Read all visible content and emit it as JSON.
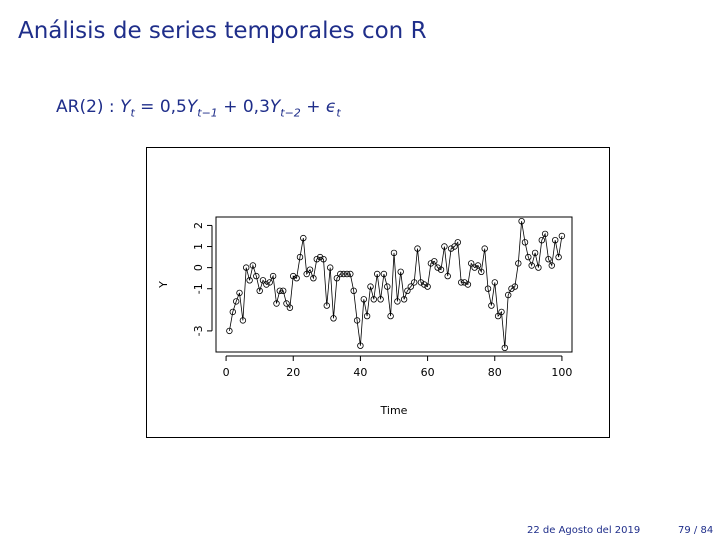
{
  "slide": {
    "title": "Análisis de series temporales con R",
    "equation": {
      "label": "AR(2) : ",
      "lhs": "Y",
      "lhs_sub": "t",
      "eq": " = 0,5",
      "term1": "Y",
      "term1_sub": "t−1",
      "plus1": " + 0,3",
      "term2": "Y",
      "term2_sub": "t−2",
      "plus2": " + ",
      "eps": "ϵ",
      "eps_sub": "t"
    },
    "footer": {
      "date": "22 de Agosto del 2019",
      "page": "79 / 84"
    }
  },
  "chart_data": {
    "type": "line",
    "xlabel": "Time",
    "ylabel": "Y",
    "xlim": [
      0,
      100
    ],
    "ylim": [
      -3,
      2
    ],
    "xticks": [
      0,
      20,
      40,
      60,
      80,
      100
    ],
    "yticks": [
      -3,
      -1,
      0,
      1,
      2
    ],
    "x": [
      1,
      2,
      3,
      4,
      5,
      6,
      7,
      8,
      9,
      10,
      11,
      12,
      13,
      14,
      15,
      16,
      17,
      18,
      19,
      20,
      21,
      22,
      23,
      24,
      25,
      26,
      27,
      28,
      29,
      30,
      31,
      32,
      33,
      34,
      35,
      36,
      37,
      38,
      39,
      40,
      41,
      42,
      43,
      44,
      45,
      46,
      47,
      48,
      49,
      50,
      51,
      52,
      53,
      54,
      55,
      56,
      57,
      58,
      59,
      60,
      61,
      62,
      63,
      64,
      65,
      66,
      67,
      68,
      69,
      70,
      71,
      72,
      73,
      74,
      75,
      76,
      77,
      78,
      79,
      80,
      81,
      82,
      83,
      84,
      85,
      86,
      87,
      88,
      89,
      90,
      91,
      92,
      93,
      94,
      95,
      96,
      97,
      98,
      99,
      100
    ],
    "series": [
      {
        "values": [
          -3.0,
          -2.1,
          -1.6,
          -1.2,
          -2.5,
          0.0,
          -0.6,
          0.1,
          -0.4,
          -1.1,
          -0.6,
          -0.8,
          -0.7,
          -0.4,
          -1.7,
          -1.1,
          -1.1,
          -1.7,
          -1.9,
          -0.4,
          -0.5,
          0.5,
          1.4,
          -0.3,
          -0.1,
          -0.5,
          0.4,
          0.5,
          0.4,
          -1.8,
          0.0,
          -2.4,
          -0.5,
          -0.3,
          -0.3,
          -0.3,
          -0.3,
          -1.1,
          -2.5,
          -3.7,
          -1.5,
          -2.3,
          -0.9,
          -1.5,
          -0.3,
          -1.5,
          -0.3,
          -0.9,
          -2.3,
          0.7,
          -1.6,
          -0.2,
          -1.5,
          -1.1,
          -0.9,
          -0.7,
          0.9,
          -0.7,
          -0.8,
          -0.9,
          0.2,
          0.3,
          0.0,
          -0.1,
          1.0,
          -0.4,
          0.9,
          1.0,
          1.2,
          -0.7,
          -0.7,
          -0.8,
          0.2,
          0.0,
          0.1,
          -0.2,
          0.9,
          -1.0,
          -1.8,
          -0.7,
          -2.3,
          -2.1,
          -3.8,
          -1.3,
          -1.0,
          -0.9,
          0.2,
          2.2,
          1.2,
          0.5,
          0.1,
          0.7,
          0.0,
          1.3,
          1.6,
          0.4,
          0.1,
          1.3,
          0.5,
          1.5
        ]
      }
    ]
  }
}
